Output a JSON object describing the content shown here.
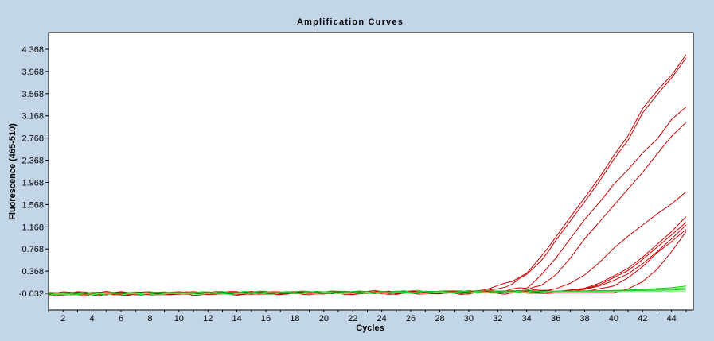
{
  "chart_data": {
    "type": "line",
    "title": "Amplification Curves",
    "xlabel": "Cycles",
    "ylabel": "Fluorescence (465-510)",
    "xlim": [
      1,
      45.5
    ],
    "ylim": [
      -0.332,
      4.668
    ],
    "xticks": [
      2,
      4,
      6,
      8,
      10,
      12,
      14,
      16,
      18,
      20,
      22,
      24,
      26,
      28,
      30,
      32,
      34,
      36,
      38,
      40,
      42,
      44
    ],
    "yticks": [
      -0.032,
      0.368,
      0.768,
      1.168,
      1.568,
      1.968,
      2.368,
      2.768,
      3.168,
      3.568,
      3.968,
      4.368
    ],
    "ytick_labels": [
      "-0.032",
      "0.368",
      "0.768",
      "1.168",
      "1.568",
      "1.968",
      "2.368",
      "2.768",
      "3.168",
      "3.568",
      "3.968",
      "4.368"
    ],
    "grid": false,
    "legend": "none",
    "series": [
      {
        "color": "#cc0000",
        "x": [
          1,
          30,
          32,
          33,
          34,
          35,
          36,
          37,
          38,
          39,
          40,
          41,
          42,
          43,
          44,
          45
        ],
        "y": [
          -0.02,
          -0.01,
          0.09,
          0.2,
          0.33,
          0.62,
          0.98,
          1.34,
          1.69,
          2.05,
          2.45,
          2.81,
          3.3,
          3.62,
          3.9,
          4.27
        ]
      },
      {
        "color": "#cc0000",
        "x": [
          1,
          30,
          32,
          33,
          34,
          35,
          36,
          37,
          38,
          39,
          40,
          41,
          42,
          43,
          44,
          45
        ],
        "y": [
          -0.04,
          -0.03,
          0.04,
          0.15,
          0.3,
          0.56,
          0.92,
          1.27,
          1.62,
          1.98,
          2.38,
          2.73,
          3.22,
          3.55,
          3.85,
          4.21
        ]
      },
      {
        "color": "#cc0000",
        "x": [
          1,
          32,
          34,
          35,
          36,
          37,
          38,
          39,
          40,
          41,
          42,
          43,
          44,
          45
        ],
        "y": [
          -0.03,
          0.0,
          0.07,
          0.3,
          0.6,
          0.95,
          1.3,
          1.6,
          1.93,
          2.2,
          2.5,
          2.75,
          3.1,
          3.33
        ]
      },
      {
        "color": "#cc0000",
        "x": [
          1,
          33,
          35,
          36,
          37,
          38,
          39,
          40,
          41,
          42,
          43,
          44,
          45
        ],
        "y": [
          -0.05,
          0.0,
          0.1,
          0.3,
          0.6,
          0.95,
          1.25,
          1.55,
          1.85,
          2.15,
          2.48,
          2.8,
          3.05
        ]
      },
      {
        "color": "#cc0000",
        "x": [
          1,
          34,
          36,
          37,
          38,
          39,
          40,
          41,
          42,
          43,
          44,
          45
        ],
        "y": [
          -0.06,
          0.0,
          0.05,
          0.15,
          0.3,
          0.52,
          0.78,
          1.0,
          1.2,
          1.4,
          1.58,
          1.8
        ]
      },
      {
        "color": "#cc0000",
        "x": [
          1,
          36,
          38,
          39,
          40,
          41,
          42,
          43,
          44,
          45
        ],
        "y": [
          -0.02,
          0.0,
          0.06,
          0.15,
          0.28,
          0.42,
          0.62,
          0.85,
          1.08,
          1.35
        ]
      },
      {
        "color": "#cc0000",
        "x": [
          1,
          36,
          38,
          39,
          40,
          41,
          42,
          43,
          44,
          45
        ],
        "y": [
          -0.05,
          0.0,
          0.05,
          0.12,
          0.25,
          0.38,
          0.58,
          0.8,
          1.02,
          1.25
        ]
      },
      {
        "color": "#cc0000",
        "x": [
          1,
          37,
          38,
          39,
          40,
          41,
          42,
          43,
          44,
          45
        ],
        "y": [
          -0.04,
          0.0,
          0.04,
          0.1,
          0.2,
          0.32,
          0.5,
          0.72,
          0.95,
          1.2
        ]
      },
      {
        "color": "#cc0000",
        "x": [
          1,
          38,
          40,
          41,
          42,
          43,
          44,
          45
        ],
        "y": [
          -0.03,
          0.0,
          0.1,
          0.25,
          0.45,
          0.7,
          0.9,
          1.12
        ]
      },
      {
        "color": "#cc0000",
        "x": [
          1,
          40,
          41,
          42,
          43,
          44,
          45
        ],
        "y": [
          -0.06,
          -0.02,
          0.05,
          0.18,
          0.4,
          0.72,
          1.08
        ]
      },
      {
        "color": "#00cc00",
        "x": [
          1,
          10,
          20,
          30,
          36,
          40,
          42,
          44,
          45
        ],
        "y": [
          -0.04,
          -0.02,
          -0.01,
          0.0,
          0.0,
          0.02,
          0.04,
          0.07,
          0.1
        ]
      },
      {
        "color": "#33dd33",
        "x": [
          1,
          10,
          20,
          30,
          36,
          40,
          42,
          44,
          45
        ],
        "y": [
          -0.05,
          -0.03,
          -0.02,
          -0.01,
          0.0,
          0.01,
          0.03,
          0.05,
          0.07
        ]
      },
      {
        "color": "#22bb22",
        "x": [
          1,
          10,
          20,
          30,
          36,
          40,
          42,
          44,
          45
        ],
        "y": [
          -0.03,
          -0.02,
          0.0,
          0.01,
          0.01,
          0.02,
          0.02,
          0.03,
          0.04
        ]
      },
      {
        "color": "#66ee66",
        "x": [
          1,
          10,
          20,
          30,
          36,
          40,
          42,
          44,
          45
        ],
        "y": [
          -0.06,
          -0.04,
          -0.03,
          -0.02,
          -0.01,
          0.0,
          0.0,
          0.01,
          0.01
        ]
      }
    ]
  }
}
